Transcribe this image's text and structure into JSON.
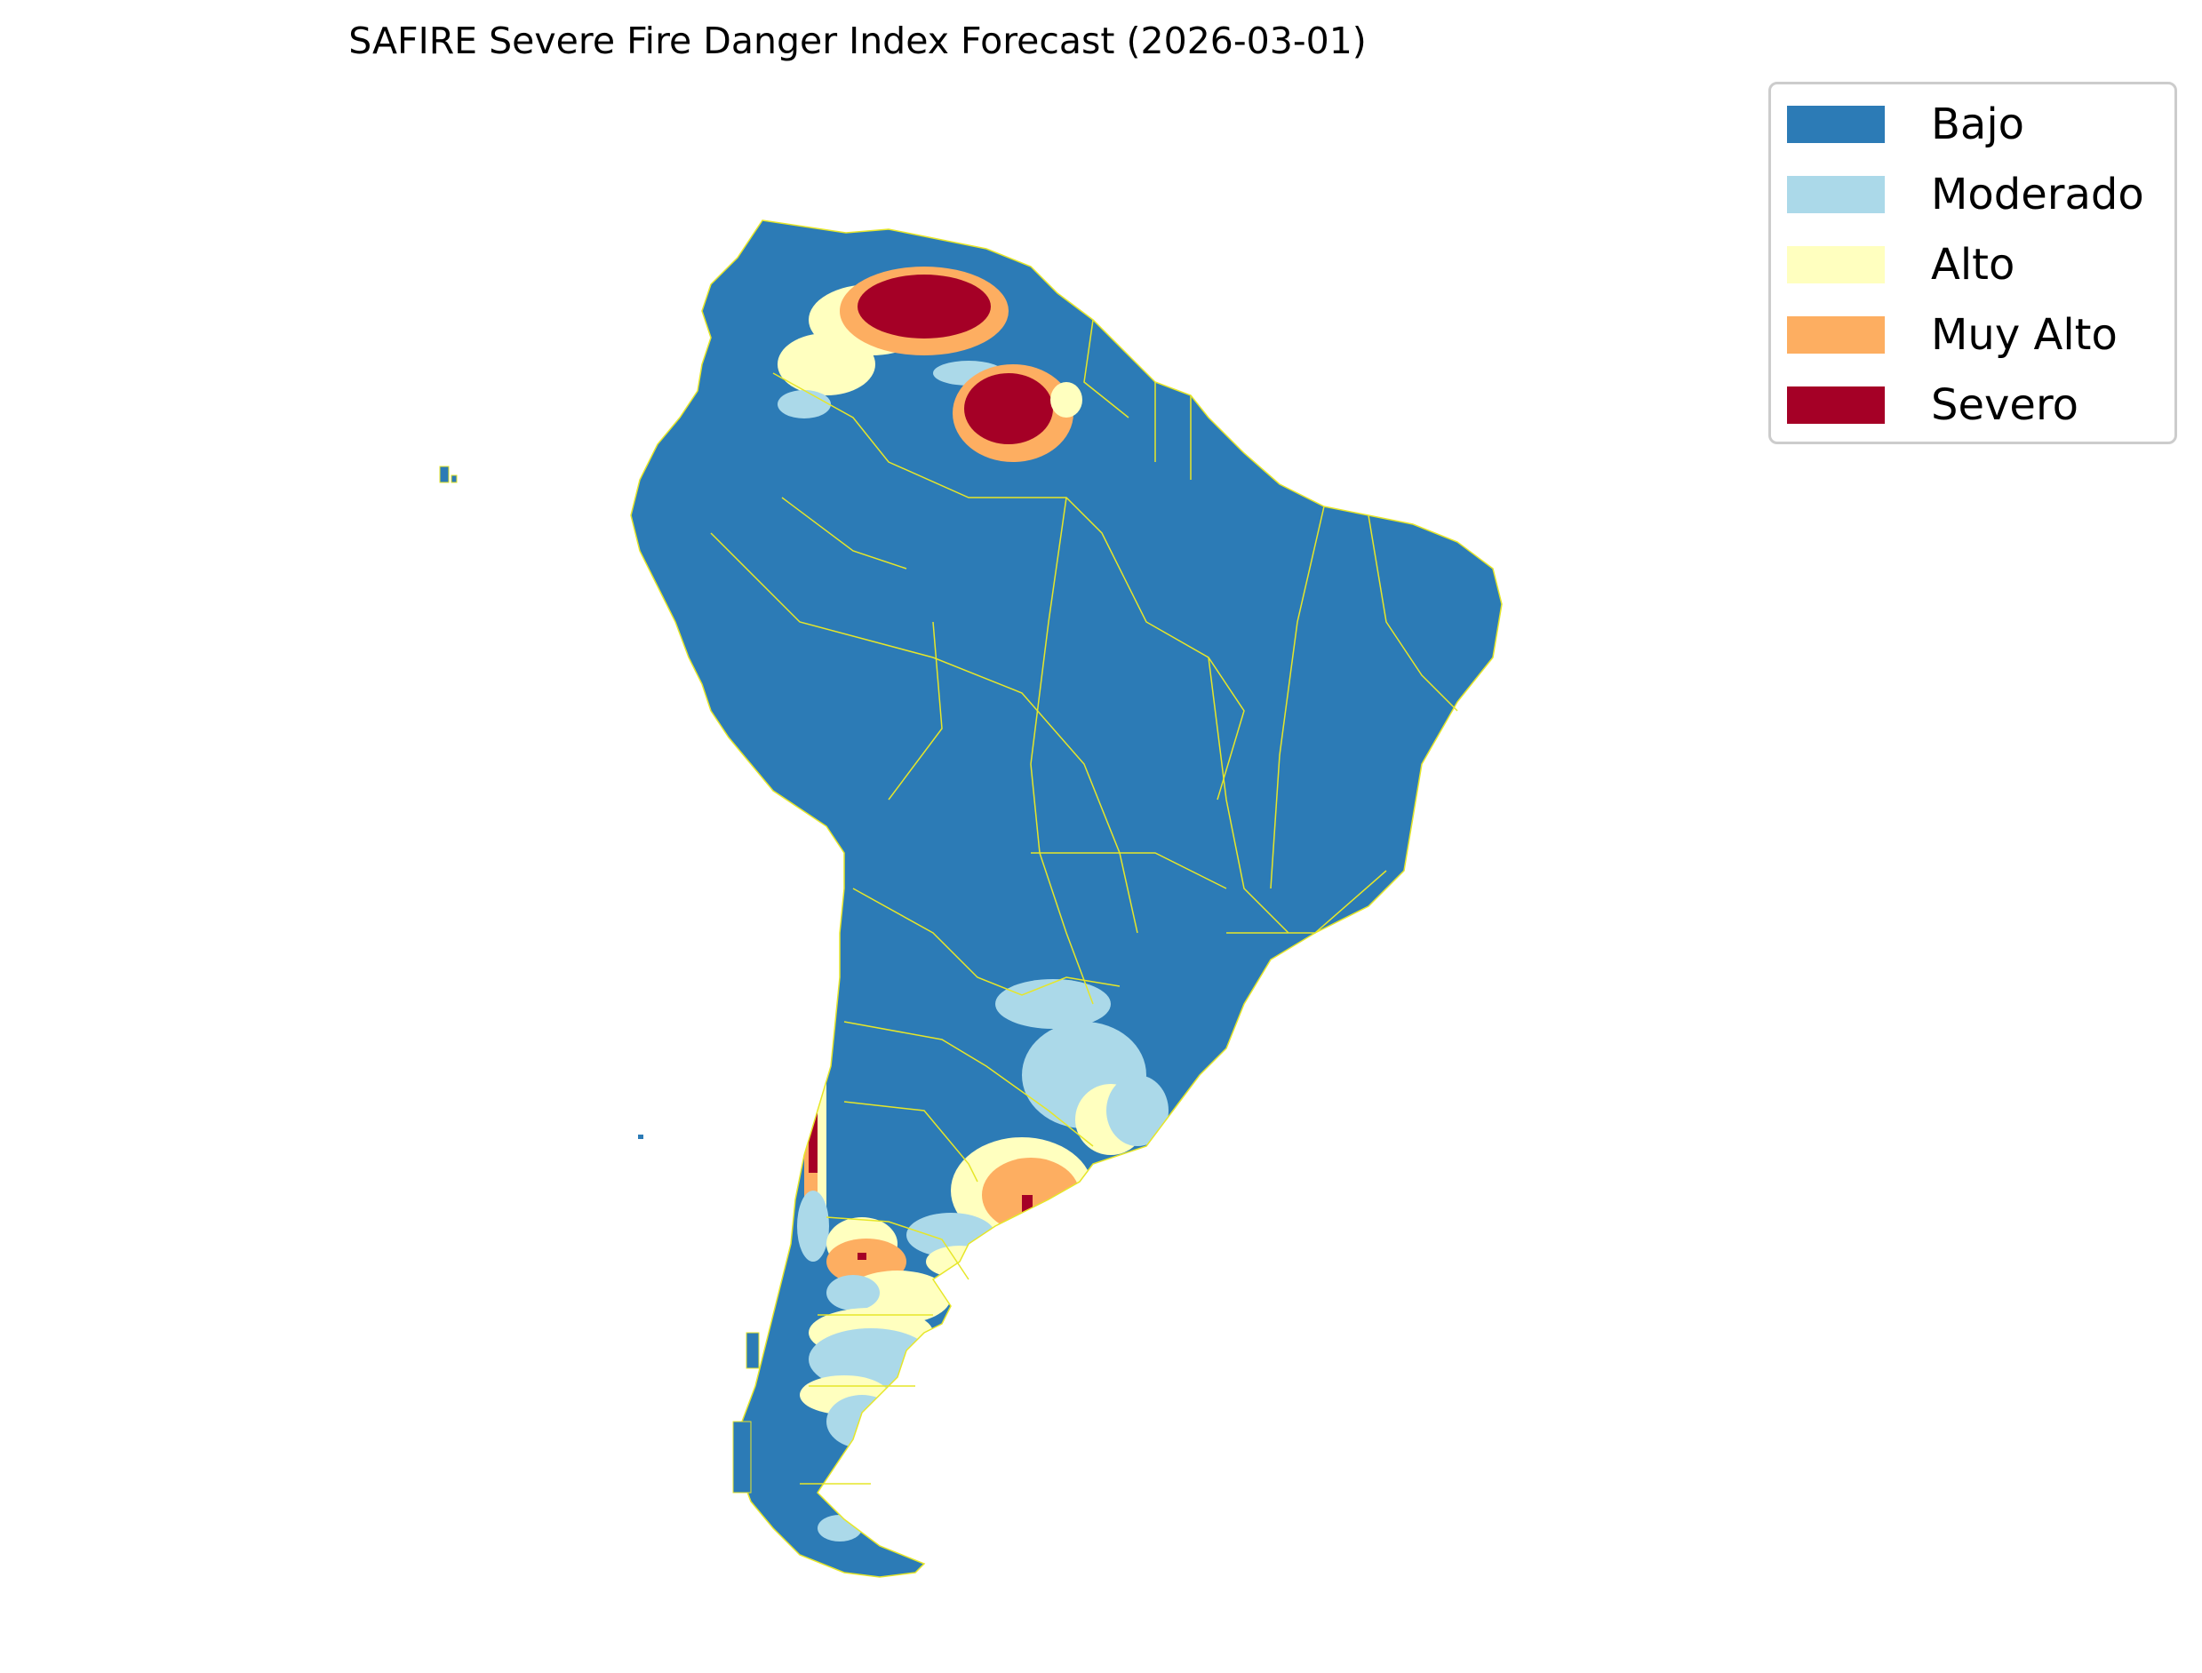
{
  "title": "SAFIRE Severe Fire Danger Index Forecast (2026-03-01)",
  "legend": [
    {
      "label": "Bajo",
      "color": "#2c7bb6"
    },
    {
      "label": "Moderado",
      "color": "#abd9e9"
    },
    {
      "label": "Alto",
      "color": "#ffffbf"
    },
    {
      "label": "Muy Alto",
      "color": "#fdae61"
    },
    {
      "label": "Severo",
      "color": "#a50026"
    }
  ],
  "colors": {
    "boundary": "#e6e629",
    "background": "#ffffff"
  }
}
